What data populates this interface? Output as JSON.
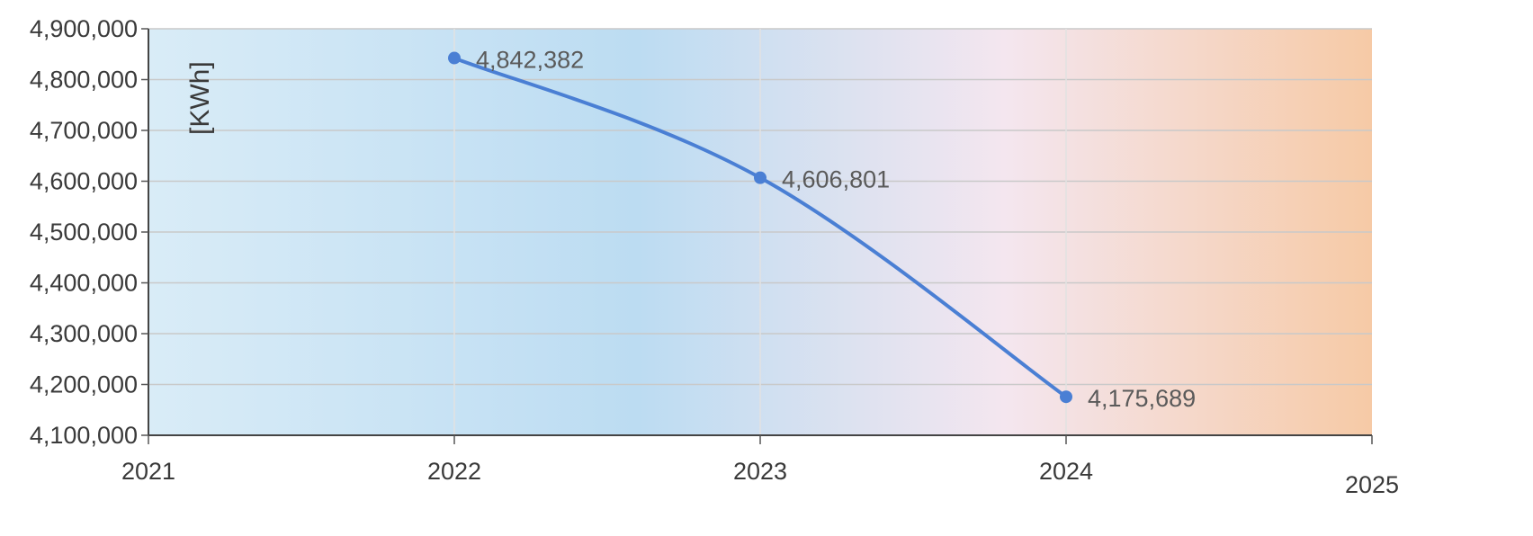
{
  "chart_data": {
    "type": "line",
    "title": "",
    "xlabel": "",
    "ylabel": "[KWh]",
    "x_ticks": [
      "2021",
      "2022",
      "2023",
      "2024",
      "2025"
    ],
    "y_ticks": [
      "4,100,000",
      "4,200,000",
      "4,300,000",
      "4,400,000",
      "4,500,000",
      "4,600,000",
      "4,700,000",
      "4,800,000",
      "4,900,000"
    ],
    "xlim": [
      2021,
      2025
    ],
    "ylim": [
      4100000,
      4900000
    ],
    "grid": true,
    "series": [
      {
        "x": [
          2022,
          2023,
          2024
        ],
        "values": [
          4842382,
          4606801,
          4175689
        ],
        "labels": [
          "4,842,382",
          "4,606,801",
          "4,175,689"
        ],
        "color": "#4a7fd4"
      }
    ],
    "background_gradient": [
      "#d9ecf7",
      "#bcdcf2",
      "#f4e6ef",
      "#f6caa6"
    ]
  }
}
